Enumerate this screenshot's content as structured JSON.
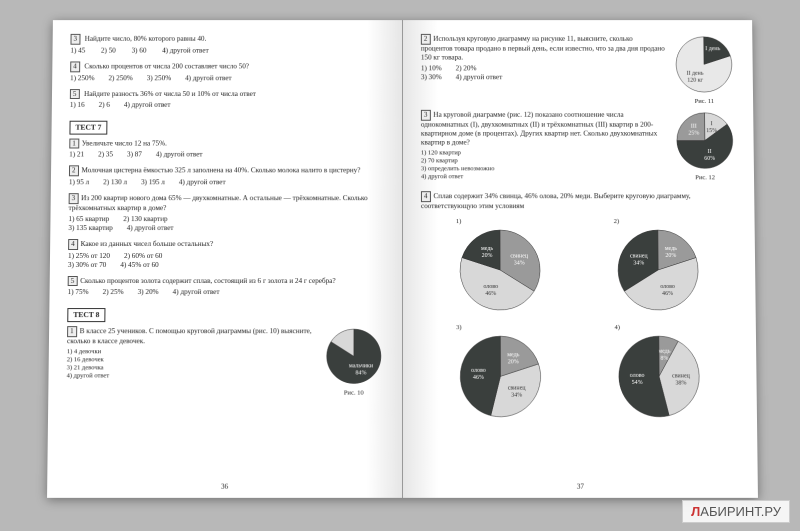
{
  "watermark": {
    "l": "Л",
    "rest": "АБИРИНТ.РУ"
  },
  "left": {
    "pagenum": "36",
    "q3": {
      "num": "3",
      "text": "Найдите число, 80% которого равны 40.",
      "o1": "1) 45",
      "o2": "2) 50",
      "o3": "3) 60",
      "o4": "4) другой ответ"
    },
    "q4": {
      "num": "4",
      "text": "Сколько процентов от числа 200 составляет число 50?",
      "o1": "1) 250%",
      "o2": "2) 250%",
      "o3": "3) 250%",
      "o4": "4) другой ответ"
    },
    "q5": {
      "num": "5",
      "text": "Найдите разность 36% от числа 50 и 10% от числа ответ",
      "o1": "1) 16",
      "o2": "2) 6",
      "o3": "",
      "o4": "4) другой ответ"
    },
    "test7": "ТЕСТ 7",
    "t7q1": {
      "num": "1",
      "text": "Увеличьте число 12 на 75%.",
      "o1": "1) 21",
      "o2": "2) 35",
      "o3": "3) 87",
      "o4": "4) другой ответ"
    },
    "t7q2": {
      "num": "2",
      "text": "Молочная цистерна ёмкостью 325 л заполнена на 40%. Сколько молока налито в цистерну?",
      "o1": "1) 95 л",
      "o2": "2) 130 л",
      "o3": "3) 195 л",
      "o4": "4) другой ответ"
    },
    "t7q3": {
      "num": "3",
      "text": "Из 200 квартир нового дома 65% — двухкомнатные. А остальные — трёхкомнатные. Сколько трёхкомнатных квартир в доме?",
      "o1": "1) 65 квартир",
      "o2": "2) 130 квартир",
      "o3": "3) 135 квартир",
      "o4": "4) другой ответ"
    },
    "t7q4": {
      "num": "4",
      "text": "Какое из данных чисел больше остальных?",
      "o1": "1) 25% от 120",
      "o2": "2) 60% от 60",
      "o3": "3) 30% от 70",
      "o4": "4) 45% от 60"
    },
    "t7q5": {
      "num": "5",
      "text": "Сколько процентов золота содержит сплав, состоящий из 6 г золота и 24 г серебра?",
      "o1": "1) 75%",
      "o2": "2) 25%",
      "o3": "3) 20%",
      "o4": "4) другой ответ"
    },
    "test8": "ТЕСТ 8",
    "t8q1": {
      "num": "1",
      "text": "В классе 25 учеников. С помощью круговой диаграммы (рис. 10) выясните, сколько в классе девочек.",
      "o1": "1) 4 девочки",
      "o2": "2) 16 девочек",
      "o3": "3) 21 девочка",
      "o4": "4) другой ответ"
    },
    "fig10": {
      "label": "Рис. 10",
      "boy": "мальчики",
      "pct": "84%",
      "slice_deg": 57.6,
      "colors": {
        "big": "#3a3f3d",
        "small": "#d8d8d8"
      }
    }
  },
  "right": {
    "pagenum": "37",
    "q2": {
      "num": "2",
      "text": "Используя круговую диаграмму на рисунке 11, выясните, сколько процентов товара продано в первый день, если известно, что за два дня продано 150 кг товара.",
      "o1": "1) 10%",
      "o2": "2) 20%",
      "o3": "3) 30%",
      "o4": "4) другой ответ"
    },
    "fig11": {
      "label": "Рис. 11",
      "d1": "I день",
      "d2": "II день",
      "kg": "120 кг",
      "slice_deg": 72,
      "colors": {
        "big": "#e8e8e8",
        "small": "#3a3f3d"
      }
    },
    "q3": {
      "num": "3",
      "text": "На круговой диаграмме (рис. 12) показано соотношение числа однокомнатных (I), двухкомнатных (II) и трёхкомнатных (III) квартир в 200-квартирном доме (в процентах). Других квартир нет. Сколько двухкомнатных квартир в доме?",
      "o1": "1) 120 квартир",
      "o2": "2) 70 квартир",
      "o3": "3) определить невозможно",
      "o4": "4) другой ответ"
    },
    "fig12": {
      "label": "Рис. 12",
      "l1": "I",
      "p1": "15%",
      "l2": "II",
      "p2": "60%",
      "l3": "III",
      "p3": "25%",
      "colors": {
        "I": "#d8d8d8",
        "II": "#3a3f3d",
        "III": "#9a9a9a"
      }
    },
    "q4": {
      "num": "4",
      "text": "Сплав содержит 34% свинца, 46% олова, 20% меди. Выберите круговую диаграмму, соответствующую этим условиям"
    },
    "pies": {
      "p1": {
        "n": "1)",
        "a": {
          "lbl": "свинец",
          "pct": "34%",
          "deg": 122,
          "c": "#9a9a9a"
        },
        "b": {
          "lbl": "олово",
          "pct": "46%",
          "deg": 166,
          "c": "#d8d8d8"
        },
        "c": {
          "lbl": "медь",
          "pct": "20%",
          "deg": 72,
          "c": "#3a3f3d"
        }
      },
      "p2": {
        "n": "2)",
        "a": {
          "lbl": "медь",
          "pct": "20%",
          "deg": 72,
          "c": "#9a9a9a"
        },
        "b": {
          "lbl": "олово",
          "pct": "46%",
          "deg": 166,
          "c": "#d8d8d8"
        },
        "c": {
          "lbl": "свинец",
          "pct": "34%",
          "deg": 122,
          "c": "#3a3f3d"
        }
      },
      "p3": {
        "n": "3)",
        "a": {
          "lbl": "медь",
          "pct": "20%",
          "deg": 72,
          "c": "#9a9a9a"
        },
        "b": {
          "lbl": "свинец",
          "pct": "34%",
          "deg": 122,
          "c": "#d8d8d8"
        },
        "c": {
          "lbl": "олово",
          "pct": "46%",
          "deg": 166,
          "c": "#3a3f3d"
        }
      },
      "p4": {
        "n": "4)",
        "a": {
          "lbl": "медь",
          "pct": "8%",
          "deg": 29,
          "c": "#9a9a9a"
        },
        "b": {
          "lbl": "свинец",
          "pct": "38%",
          "deg": 137,
          "c": "#d8d8d8"
        },
        "c": {
          "lbl": "олово",
          "pct": "54%",
          "deg": 194,
          "c": "#3a3f3d"
        }
      }
    }
  }
}
